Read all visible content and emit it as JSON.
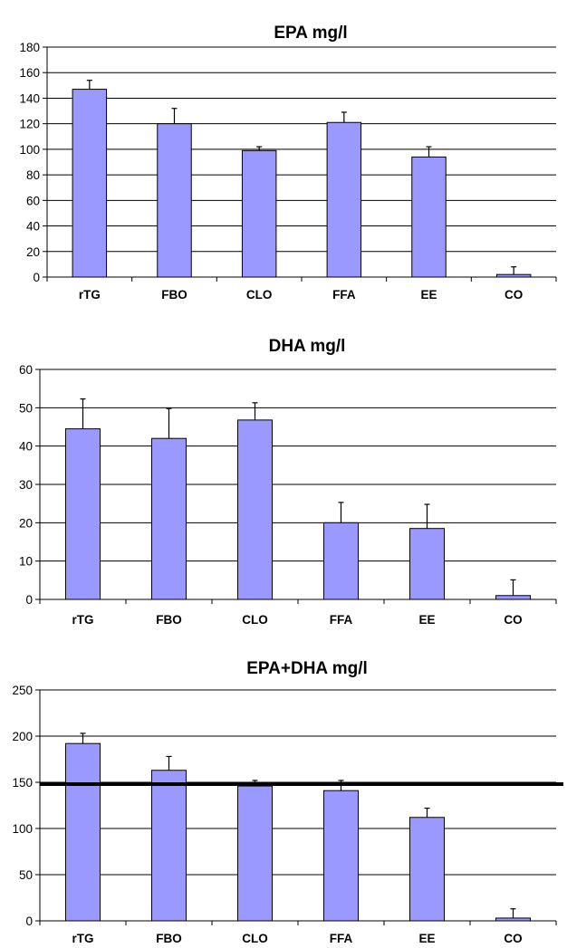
{
  "chart_data": [
    {
      "type": "bar",
      "title": "EPA mg/l",
      "categories": [
        "rTG",
        "FBO",
        "CLO",
        "FFA",
        "EE",
        "CO"
      ],
      "values": [
        147,
        120,
        99,
        121,
        94,
        2
      ],
      "errors": [
        7,
        12,
        3,
        8,
        8,
        6
      ],
      "ylim": [
        0,
        180
      ],
      "yticks": [
        0,
        20,
        40,
        60,
        80,
        100,
        120,
        140,
        160,
        180
      ],
      "grid": true,
      "bar_color": "#9999ff"
    },
    {
      "type": "bar",
      "title": "DHA mg/l",
      "categories": [
        "rTG",
        "FBO",
        "CLO",
        "FFA",
        "EE",
        "CO"
      ],
      "values": [
        44.5,
        42,
        46.8,
        20,
        18.5,
        1
      ],
      "errors": [
        7.8,
        7.8,
        4.5,
        5.3,
        6.3,
        4.1
      ],
      "ylim": [
        0,
        60
      ],
      "yticks": [
        0,
        10,
        20,
        30,
        40,
        50,
        60
      ],
      "grid": true,
      "bar_color": "#9999ff"
    },
    {
      "type": "bar",
      "title": "EPA+DHA mg/l",
      "categories": [
        "rTG",
        "FBO",
        "CLO",
        "FFA",
        "EE",
        "CO"
      ],
      "values": [
        192,
        163,
        146,
        141,
        112,
        3
      ],
      "errors": [
        11,
        15,
        6,
        11,
        10,
        10
      ],
      "ylim": [
        0,
        250
      ],
      "yticks": [
        0,
        50,
        100,
        150,
        200,
        250
      ],
      "grid": true,
      "reference_line": 148,
      "bar_color": "#9999ff"
    }
  ]
}
